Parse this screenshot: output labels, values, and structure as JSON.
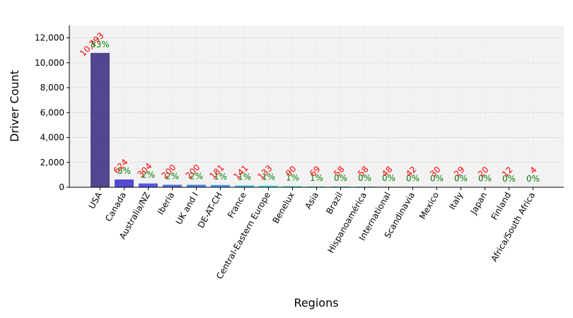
{
  "chart_data": {
    "type": "bar",
    "xlabel": "Regions",
    "ylabel": "Driver Count",
    "ylim": [
      0,
      13000
    ],
    "yticks": [
      0,
      2000,
      4000,
      6000,
      8000,
      10000,
      12000
    ],
    "ytick_labels": [
      "0",
      "2,000",
      "4,000",
      "6,000",
      "8,000",
      "10,000",
      "12,000"
    ],
    "grid": true,
    "categories": [
      "USA",
      "Canada",
      "Australia/NZ",
      "Iberia",
      "UK and I",
      "DE-AT-CH",
      "France",
      "Central-Eastern Europe",
      "Benelux",
      "Asia",
      "Brazil",
      "Hispanoamérica",
      "International",
      "Scandinavia",
      "Mexico",
      "Italy",
      "Japan",
      "Finland",
      "Africa/South Africa"
    ],
    "values": [
      10793,
      624,
      304,
      200,
      200,
      181,
      141,
      133,
      90,
      69,
      58,
      58,
      48,
      42,
      30,
      29,
      20,
      12,
      4
    ],
    "value_labels": [
      "10,793",
      "624",
      "304",
      "200",
      "200",
      "181",
      "141",
      "133",
      "90",
      "69",
      "58",
      "58",
      "48",
      "42",
      "30",
      "29",
      "20",
      "12",
      "4"
    ],
    "percent_labels": [
      "83%",
      "5%",
      "2%",
      "2%",
      "2%",
      "1%",
      "1%",
      "1%",
      "1%",
      "1%",
      "0%",
      "0%",
      "0%",
      "0%",
      "0%",
      "0%",
      "0%",
      "0%",
      "0%"
    ],
    "colors": [
      "#483d8b",
      "#4b3fd1",
      "#4a4fe0",
      "#4169e1",
      "#3d7bdc",
      "#3d8fe6",
      "#3fb0e8",
      "#40d8e0",
      "#3fe0c8",
      "#3fd9a8",
      "#4bd990",
      "#6adb7a",
      "#8fdc6b",
      "#b5d85e",
      "#cfc355",
      "#d9a24c",
      "#d97f44",
      "#cc5a3d",
      "#c44a3a"
    ]
  }
}
